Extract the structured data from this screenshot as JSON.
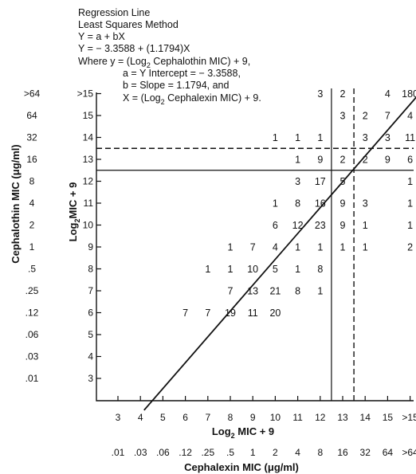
{
  "chart_data": {
    "type": "scatter",
    "annotation": {
      "lines": [
        "Regression Line",
        "Least Squares Method",
        "Y = a + bX",
        "Y = − 3.3588 + (1.1794)X",
        "Where  y = (Log",
        "a = Y Intercept = − 3.3588,",
        "b = Slope = 1.1794, and",
        "X = (Log"
      ],
      "line5_subscript": "2",
      "line5_rest": " Cephalothin MIC) + 9,",
      "line8_subscript": "2",
      "line8_rest": " Cephalexin MIC) + 9."
    },
    "regression": {
      "intercept": -3.3588,
      "slope": 1.1794
    },
    "xlabel": {
      "prefix": "Log",
      "subscript": "2",
      "suffix": " MIC + 9"
    },
    "ylabel": {
      "prefix": "Log",
      "subscript": "2",
      "suffix": "MIC + 9"
    },
    "x2label": "Cephalexin MIC (μg/ml)",
    "y2label": "Cephalothin MIC (μg/ml)",
    "x_ticks": [
      {
        "v": 3,
        "label": "3",
        "mic": ".01"
      },
      {
        "v": 4,
        "label": "4",
        "mic": ".03"
      },
      {
        "v": 5,
        "label": "5",
        "mic": ".06"
      },
      {
        "v": 6,
        "label": "6",
        "mic": ".12"
      },
      {
        "v": 7,
        "label": "7",
        "mic": ".25"
      },
      {
        "v": 8,
        "label": "8",
        "mic": ".5"
      },
      {
        "v": 9,
        "label": "9",
        "mic": "1"
      },
      {
        "v": 10,
        "label": "10",
        "mic": "2"
      },
      {
        "v": 11,
        "label": "11",
        "mic": "4"
      },
      {
        "v": 12,
        "label": "12",
        "mic": "8"
      },
      {
        "v": 13,
        "label": "13",
        "mic": "16"
      },
      {
        "v": 14,
        "label": "14",
        "mic": "32"
      },
      {
        "v": 15,
        "label": "15",
        "mic": "64"
      },
      {
        "v": 16,
        "label": ">15",
        "mic": ">64"
      }
    ],
    "y_ticks": [
      {
        "v": 3,
        "label": "3",
        "mic": ".01"
      },
      {
        "v": 4,
        "label": "4",
        "mic": ".03"
      },
      {
        "v": 5,
        "label": "5",
        "mic": ".06"
      },
      {
        "v": 6,
        "label": "6",
        "mic": ".12"
      },
      {
        "v": 7,
        "label": "7",
        "mic": ".25"
      },
      {
        "v": 8,
        "label": "8",
        "mic": ".5"
      },
      {
        "v": 9,
        "label": "9",
        "mic": "1"
      },
      {
        "v": 10,
        "label": "10",
        "mic": "2"
      },
      {
        "v": 11,
        "label": "11",
        "mic": "4"
      },
      {
        "v": 12,
        "label": "12",
        "mic": "8"
      },
      {
        "v": 13,
        "label": "13",
        "mic": "16"
      },
      {
        "v": 14,
        "label": "14",
        "mic": "32"
      },
      {
        "v": 15,
        "label": "15",
        "mic": "64"
      },
      {
        "v": 16,
        "label": ">15",
        "mic": ">64"
      }
    ],
    "breakpoints": {
      "solid": {
        "x": 12.5,
        "y": 12.5
      },
      "dashed": {
        "x": 13.5,
        "y": 13.5
      }
    },
    "cells": [
      {
        "x": 12,
        "y": 16,
        "n": 3
      },
      {
        "x": 13,
        "y": 16,
        "n": 2
      },
      {
        "x": 15,
        "y": 16,
        "n": 4
      },
      {
        "x": 16,
        "y": 16,
        "n": 180
      },
      {
        "x": 13,
        "y": 15,
        "n": 3
      },
      {
        "x": 14,
        "y": 15,
        "n": 2
      },
      {
        "x": 15,
        "y": 15,
        "n": 7
      },
      {
        "x": 16,
        "y": 15,
        "n": 4
      },
      {
        "x": 10,
        "y": 14,
        "n": 1
      },
      {
        "x": 11,
        "y": 14,
        "n": 1
      },
      {
        "x": 12,
        "y": 14,
        "n": 1
      },
      {
        "x": 14,
        "y": 14,
        "n": 3
      },
      {
        "x": 15,
        "y": 14,
        "n": 3
      },
      {
        "x": 16,
        "y": 14,
        "n": 11
      },
      {
        "x": 11,
        "y": 13,
        "n": 1
      },
      {
        "x": 12,
        "y": 13,
        "n": 9
      },
      {
        "x": 13,
        "y": 13,
        "n": 2
      },
      {
        "x": 14,
        "y": 13,
        "n": 2
      },
      {
        "x": 15,
        "y": 13,
        "n": 9
      },
      {
        "x": 16,
        "y": 13,
        "n": 6
      },
      {
        "x": 11,
        "y": 12,
        "n": 3
      },
      {
        "x": 12,
        "y": 12,
        "n": 17
      },
      {
        "x": 13,
        "y": 12,
        "n": 5
      },
      {
        "x": 16,
        "y": 12,
        "n": 1
      },
      {
        "x": 10,
        "y": 11,
        "n": 1
      },
      {
        "x": 11,
        "y": 11,
        "n": 8
      },
      {
        "x": 12,
        "y": 11,
        "n": 16
      },
      {
        "x": 13,
        "y": 11,
        "n": 9
      },
      {
        "x": 14,
        "y": 11,
        "n": 3
      },
      {
        "x": 16,
        "y": 11,
        "n": 1
      },
      {
        "x": 10,
        "y": 10,
        "n": 6
      },
      {
        "x": 11,
        "y": 10,
        "n": 12
      },
      {
        "x": 12,
        "y": 10,
        "n": 23
      },
      {
        "x": 13,
        "y": 10,
        "n": 9
      },
      {
        "x": 14,
        "y": 10,
        "n": 1
      },
      {
        "x": 16,
        "y": 10,
        "n": 1
      },
      {
        "x": 8,
        "y": 9,
        "n": 1
      },
      {
        "x": 9,
        "y": 9,
        "n": 7
      },
      {
        "x": 10,
        "y": 9,
        "n": 4
      },
      {
        "x": 11,
        "y": 9,
        "n": 1
      },
      {
        "x": 12,
        "y": 9,
        "n": 1
      },
      {
        "x": 13,
        "y": 9,
        "n": 1
      },
      {
        "x": 14,
        "y": 9,
        "n": 1
      },
      {
        "x": 16,
        "y": 9,
        "n": 2
      },
      {
        "x": 7,
        "y": 8,
        "n": 1
      },
      {
        "x": 8,
        "y": 8,
        "n": 1
      },
      {
        "x": 9,
        "y": 8,
        "n": 10
      },
      {
        "x": 10,
        "y": 8,
        "n": 5
      },
      {
        "x": 11,
        "y": 8,
        "n": 1
      },
      {
        "x": 12,
        "y": 8,
        "n": 8
      },
      {
        "x": 8,
        "y": 7,
        "n": 7
      },
      {
        "x": 9,
        "y": 7,
        "n": 13
      },
      {
        "x": 10,
        "y": 7,
        "n": 21
      },
      {
        "x": 11,
        "y": 7,
        "n": 8
      },
      {
        "x": 12,
        "y": 7,
        "n": 1
      },
      {
        "x": 6,
        "y": 6,
        "n": 7
      },
      {
        "x": 7,
        "y": 6,
        "n": 7
      },
      {
        "x": 8,
        "y": 6,
        "n": 19
      },
      {
        "x": 9,
        "y": 6,
        "n": 11
      },
      {
        "x": 10,
        "y": 6,
        "n": 20
      }
    ]
  }
}
